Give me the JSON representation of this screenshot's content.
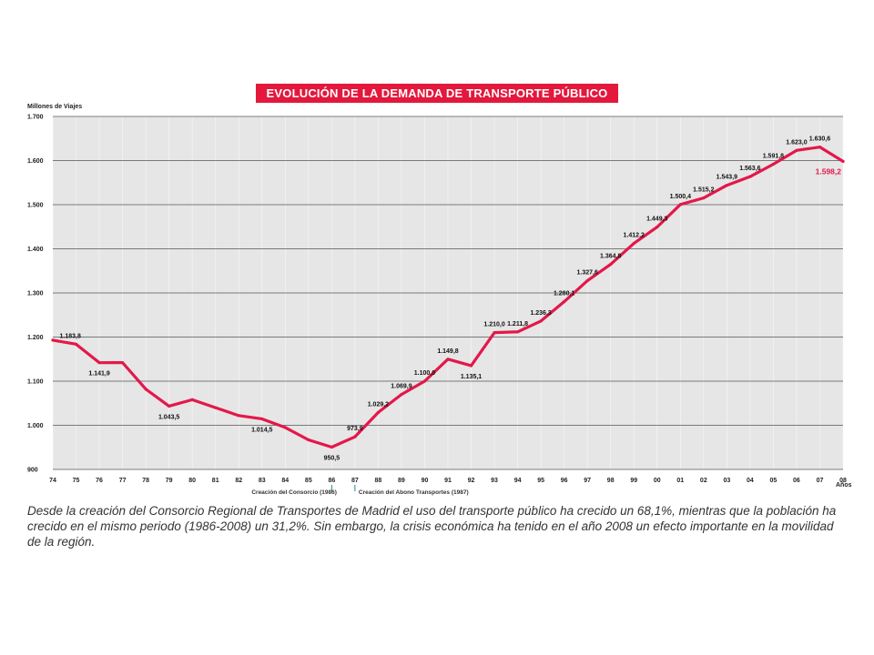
{
  "chart_data": {
    "type": "line",
    "title": "EVOLUCIÓN DE LA DEMANDA DE TRANSPORTE PÚBLICO",
    "ylabel": "Millones de Viajes",
    "xlabel": "Años",
    "ylim": [
      900,
      1700
    ],
    "yticks": [
      900,
      1000,
      1100,
      1200,
      1300,
      1400,
      1500,
      1600,
      1700
    ],
    "ytick_labels": [
      "900",
      "1.000",
      "1.100",
      "1.200",
      "1.300",
      "1.400",
      "1.500",
      "1.600",
      "1.700"
    ],
    "x": [
      "74",
      "75",
      "76",
      "77",
      "78",
      "79",
      "80",
      "81",
      "82",
      "83",
      "84",
      "85",
      "86",
      "87",
      "88",
      "89",
      "90",
      "91",
      "92",
      "93",
      "94",
      "95",
      "96",
      "97",
      "98",
      "99",
      "00",
      "01",
      "02",
      "03",
      "04",
      "05",
      "06",
      "07",
      "08"
    ],
    "values": [
      1193,
      1183.8,
      1141.9,
      1142,
      1082,
      1043.5,
      1058,
      1040,
      1022,
      1014.5,
      995,
      967,
      950.5,
      973.9,
      1029.2,
      1069.9,
      1100.0,
      1149.8,
      1135.1,
      1210.0,
      1211.8,
      1236.3,
      1280.1,
      1327.6,
      1364.8,
      1412.2,
      1449.3,
      1500.4,
      1515.2,
      1543.9,
      1563.6,
      1591.8,
      1623.0,
      1630.6,
      1598.2
    ],
    "data_labels": [
      {
        "x": "75",
        "text": "1.183,8"
      },
      {
        "x": "76",
        "text": "1.141,9"
      },
      {
        "x": "79",
        "text": "1.043,5"
      },
      {
        "x": "83",
        "text": "1.014,5"
      },
      {
        "x": "86",
        "text": "950,5"
      },
      {
        "x": "87",
        "text": "973,9"
      },
      {
        "x": "88",
        "text": "1.029,2"
      },
      {
        "x": "89",
        "text": "1.069,9"
      },
      {
        "x": "90",
        "text": "1.100,0"
      },
      {
        "x": "91",
        "text": "1.149,8"
      },
      {
        "x": "92",
        "text": "1.135,1"
      },
      {
        "x": "93",
        "text": "1.210,0"
      },
      {
        "x": "94",
        "text": "1.211,8"
      },
      {
        "x": "95",
        "text": "1.236,3"
      },
      {
        "x": "96",
        "text": "1.280,1"
      },
      {
        "x": "97",
        "text": "1.327,6"
      },
      {
        "x": "98",
        "text": "1.364,8"
      },
      {
        "x": "99",
        "text": "1.412,2"
      },
      {
        "x": "00",
        "text": "1.449,3"
      },
      {
        "x": "01",
        "text": "1.500,4"
      },
      {
        "x": "02",
        "text": "1.515,2"
      },
      {
        "x": "03",
        "text": "1.543,9"
      },
      {
        "x": "04",
        "text": "1.563,6"
      },
      {
        "x": "05",
        "text": "1.591,8"
      },
      {
        "x": "06",
        "text": "1.623,0"
      },
      {
        "x": "07",
        "text": "1.630,6"
      },
      {
        "x": "08",
        "text": "1.598,2"
      }
    ],
    "annotations": [
      {
        "x": "86",
        "text": "Creación del Consorcio (1986)"
      },
      {
        "x": "87",
        "text": "Creación del Abono Transportes (1987)"
      }
    ],
    "grid": true,
    "line_color": "#e3184a",
    "background_color": "#e6e6e6"
  },
  "caption": "Desde la creación del Consorcio Regional de Transportes de Madrid el uso del transporte público ha crecido un 68,1%, mientras que la población ha crecido en el mismo periodo (1986-2008) un 31,2%. Sin embargo, la crisis económica ha tenido en el año 2008 un efecto importante en la movilidad de la región."
}
